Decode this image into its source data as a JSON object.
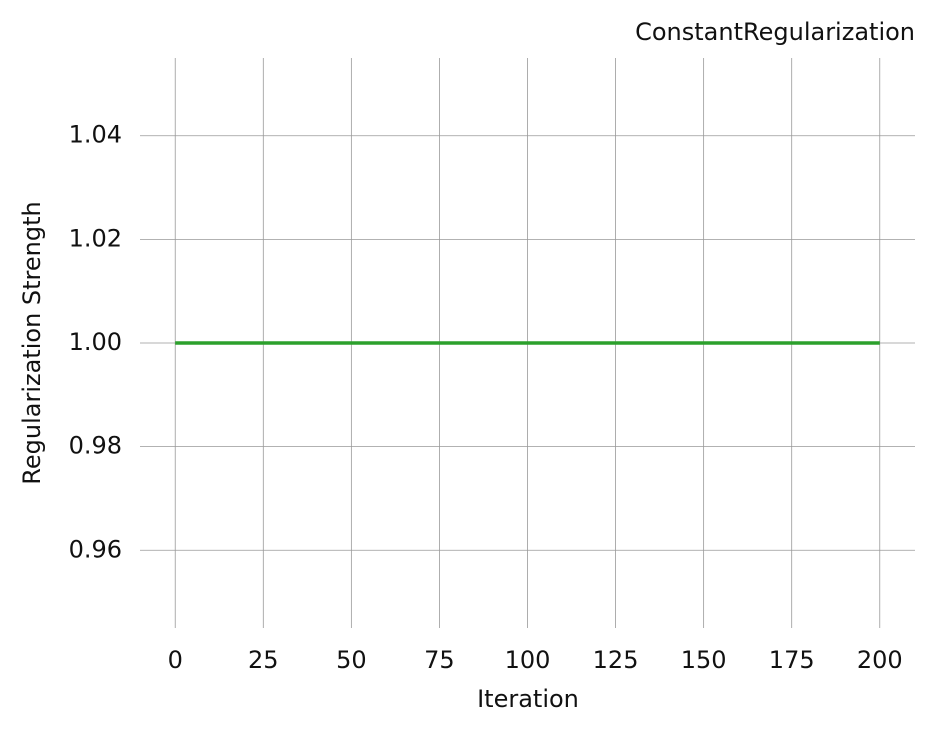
{
  "chart_data": {
    "type": "line",
    "title": "ConstantRegularization",
    "x_label": "Iteration",
    "y_label": "Regularization Strength",
    "x": [
      0,
      200
    ],
    "series": [
      {
        "name": "ConstantRegularization",
        "color": "#2ca02c",
        "values": [
          1,
          1
        ]
      }
    ],
    "xlim": [
      -10,
      210
    ],
    "xticks": [
      0,
      25,
      50,
      75,
      100,
      125,
      150,
      175,
      200
    ],
    "ylim": [
      0.945,
      1.055
    ],
    "yticks": [
      0.96,
      0.98,
      {
        "value": 1,
        "label": "1.00"
      },
      1.02,
      1.04
    ],
    "grid": true
  }
}
